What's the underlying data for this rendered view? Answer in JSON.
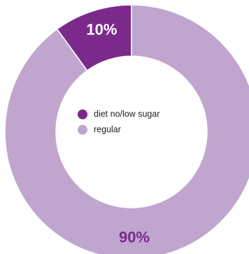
{
  "chart_data": {
    "type": "pie",
    "variant": "donut",
    "title": "",
    "slices": [
      {
        "label": "diet no/low sugar",
        "value": 10,
        "value_label": "10%",
        "color": "#7b2a8c",
        "label_color": "#ffffff"
      },
      {
        "label": "regular",
        "value": 90,
        "value_label": "90%",
        "color": "#c0a6cf",
        "label_color": "#7b2a8c"
      }
    ],
    "legend": {
      "placement": "center",
      "entries": [
        "diet no/low sugar",
        "regular"
      ]
    }
  }
}
